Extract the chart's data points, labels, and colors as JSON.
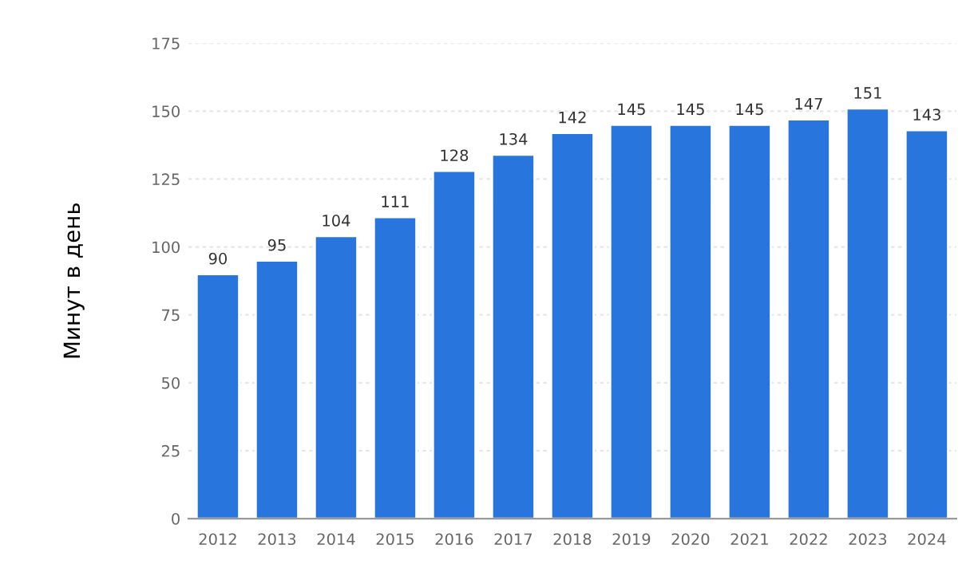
{
  "chart_data": {
    "type": "bar",
    "ylabel": "Минут в день",
    "categories": [
      "2012",
      "2013",
      "2014",
      "2015",
      "2016",
      "2017",
      "2018",
      "2019",
      "2020",
      "2021",
      "2022",
      "2023",
      "2024"
    ],
    "values": [
      90,
      95,
      104,
      111,
      128,
      134,
      142,
      145,
      145,
      145,
      147,
      151,
      143
    ],
    "color": "#2876dd",
    "ylim": [
      0,
      175
    ],
    "yticks": [
      0,
      25,
      50,
      75,
      100,
      125,
      150,
      175
    ],
    "grid": "y",
    "data_labels": true
  }
}
